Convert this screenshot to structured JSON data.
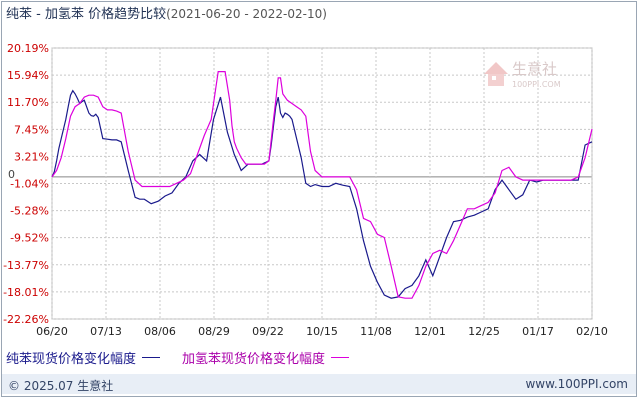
{
  "title": {
    "main": "纯苯 - 加氢苯 价格趋势比较",
    "range": "(2021-06-20 - 2022-02-10)"
  },
  "watermark": {
    "name": "生意社",
    "url": "100PPI.COM"
  },
  "legend": {
    "series1": "纯苯现货价格变化幅度",
    "series2": "加氢苯现货价格变化幅度"
  },
  "footer": {
    "left": "© 2025.07 生意社",
    "right": "www.100PPI.com"
  },
  "colors": {
    "series1": "#1a1a8c",
    "series2": "#dd00dd",
    "grid": "#c8c8c8",
    "axis_label": "#cc0000"
  },
  "chart_data": {
    "type": "line",
    "title": "纯苯 - 加氢苯 价格趋势比较",
    "ylim": [
      -22.26,
      20.19
    ],
    "yticks": [
      "20.19%",
      "15.94%",
      "11.70%",
      "7.45%",
      "3.21%",
      "-1.04%",
      "-5.28%",
      "-9.52%",
      "-13.77%",
      "-18.01%",
      "-22.26%"
    ],
    "ytick_values": [
      20.19,
      15.94,
      11.7,
      7.45,
      3.21,
      -1.04,
      -5.28,
      -9.52,
      -13.77,
      -18.01,
      -22.26
    ],
    "zero_label": "0",
    "xticks": [
      "06/20",
      "07/13",
      "08/06",
      "08/29",
      "09/22",
      "10/15",
      "11/08",
      "12/01",
      "12/25",
      "01/17",
      "02/10"
    ],
    "series": [
      {
        "name": "纯苯现货价格变化幅度",
        "x": [
          0,
          1,
          2,
          3,
          4,
          5,
          6,
          7,
          8,
          9,
          10,
          11,
          12,
          13,
          14,
          15,
          16,
          17,
          18,
          19,
          20,
          22,
          24,
          26,
          28,
          30,
          33,
          36,
          38,
          40,
          43,
          46,
          49,
          52,
          55,
          58,
          61,
          64,
          67,
          70,
          73,
          76,
          79,
          82,
          85,
          88,
          91,
          94,
          95,
          96,
          97,
          98,
          99,
          100,
          101,
          102,
          103,
          104,
          106,
          108,
          110,
          112,
          114,
          117,
          120,
          123,
          126,
          129,
          132,
          135,
          138,
          141,
          144,
          147,
          150,
          153,
          156,
          159,
          162,
          165,
          168,
          171,
          174,
          177,
          180,
          183,
          186,
          189,
          192,
          195,
          198,
          201,
          204,
          207,
          210,
          213,
          216,
          219,
          222,
          225,
          228,
          231,
          234
        ],
        "y": [
          0,
          0.8,
          2.5,
          4.5,
          6.0,
          7.5,
          9.0,
          11.0,
          12.8,
          13.5,
          13.0,
          12.3,
          11.5,
          11.8,
          12.0,
          11.0,
          10.0,
          9.6,
          9.5,
          9.8,
          9.3,
          6.0,
          5.9,
          5.8,
          5.8,
          5.5,
          1.0,
          -3.2,
          -3.5,
          -3.5,
          -4.2,
          -3.8,
          -3.0,
          -2.5,
          -1.0,
          0.0,
          2.5,
          3.5,
          2.5,
          9.0,
          12.5,
          7.0,
          3.5,
          1.0,
          2.0,
          2.0,
          2.0,
          2.5,
          5.0,
          8.0,
          11.0,
          12.5,
          10.0,
          9.3,
          10.0,
          9.8,
          9.5,
          9.0,
          6.0,
          3.0,
          -1.0,
          -1.5,
          -1.2,
          -1.5,
          -1.5,
          -1.0,
          -1.3,
          -1.5,
          -5.0,
          -10.0,
          -14.0,
          -16.5,
          -18.5,
          -19.0,
          -18.8,
          -17.5,
          -17.0,
          -15.5,
          -13.0,
          -15.5,
          -12.5,
          -9.5,
          -7.0,
          -6.8,
          -6.3,
          -6.0,
          -5.5,
          -5.0,
          -2.0,
          -0.5,
          -2.0,
          -3.5,
          -2.8,
          -0.5,
          -0.8,
          -0.5,
          -0.5,
          -0.5,
          -0.5,
          -0.5,
          -0.5,
          5.0,
          5.5
        ]
      },
      {
        "name": "加氢苯现货价格变化幅度",
        "x": [
          0,
          2,
          4,
          6,
          8,
          10,
          12,
          14,
          16,
          18,
          20,
          22,
          24,
          26,
          28,
          30,
          33,
          36,
          39,
          42,
          45,
          48,
          51,
          54,
          57,
          60,
          63,
          66,
          69,
          72,
          75,
          77,
          78,
          79,
          80,
          82,
          84,
          86,
          88,
          90,
          92,
          94,
          96,
          97,
          98,
          99,
          100,
          102,
          104,
          106,
          108,
          110,
          112,
          114,
          117,
          120,
          123,
          126,
          129,
          132,
          135,
          138,
          141,
          144,
          147,
          150,
          153,
          156,
          159,
          162,
          165,
          168,
          171,
          174,
          177,
          180,
          183,
          186,
          189,
          192,
          195,
          198,
          201,
          204,
          207,
          210,
          213,
          216,
          219,
          222,
          225,
          228,
          231,
          234
        ],
        "y": [
          0,
          1.0,
          3.0,
          6.0,
          9.5,
          11.0,
          11.5,
          12.5,
          12.8,
          12.8,
          12.5,
          11.0,
          10.5,
          10.5,
          10.3,
          10.0,
          4.0,
          -0.5,
          -1.5,
          -1.5,
          -1.5,
          -1.5,
          -1.5,
          -1.0,
          -0.5,
          0.5,
          3.5,
          6.5,
          9.0,
          16.5,
          16.5,
          12.0,
          8.0,
          5.5,
          4.5,
          3.0,
          2.0,
          2.0,
          2.0,
          2.0,
          2.0,
          2.5,
          9.0,
          12.0,
          15.5,
          15.5,
          13.0,
          12.0,
          11.5,
          11.0,
          10.5,
          9.5,
          4.0,
          1.0,
          0.0,
          0.0,
          0.0,
          0.0,
          0.0,
          -2.0,
          -6.5,
          -7.0,
          -9.0,
          -9.5,
          -14.0,
          -18.8,
          -19.0,
          -19.0,
          -17.0,
          -14.0,
          -12.0,
          -11.5,
          -12.0,
          -10.0,
          -7.5,
          -5.0,
          -5.0,
          -4.5,
          -4.0,
          -2.5,
          1.0,
          1.5,
          0.0,
          -0.5,
          -0.5,
          -0.5,
          -0.5,
          -0.5,
          -0.5,
          -0.5,
          -0.5,
          0.0,
          3.0,
          7.5
        ]
      }
    ],
    "x_max": 234,
    "grid": true,
    "legend_position": "bottom"
  }
}
